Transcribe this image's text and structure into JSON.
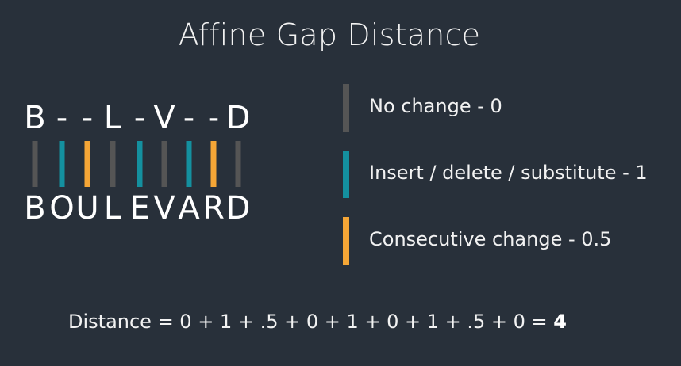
{
  "title": "Affine Gap Distance",
  "aligned_top": [
    "B",
    "-",
    "-",
    "L",
    "-",
    "V",
    "-",
    "-",
    "D"
  ],
  "aligned_bottom": [
    "B",
    "O",
    "U",
    "L",
    "E",
    "V",
    "A",
    "R",
    "D"
  ],
  "bar_types": [
    "none",
    "change",
    "consecutive",
    "none",
    "change",
    "none",
    "change",
    "consecutive",
    "none"
  ],
  "colors": {
    "background": "#28303a",
    "none": "#555555",
    "change": "#14909f",
    "consecutive": "#f5a636"
  },
  "legend": [
    {
      "type": "none",
      "label": "No change - 0"
    },
    {
      "type": "change",
      "label": "Insert / delete / substitute - 1"
    },
    {
      "type": "consecutive",
      "label": "Consecutive change - 0.5"
    }
  ],
  "distance": {
    "formula": "Distance = 0 + 1 + .5 + 0 + 1 + 0 + 1 + .5 + 0 = ",
    "result": "4"
  }
}
